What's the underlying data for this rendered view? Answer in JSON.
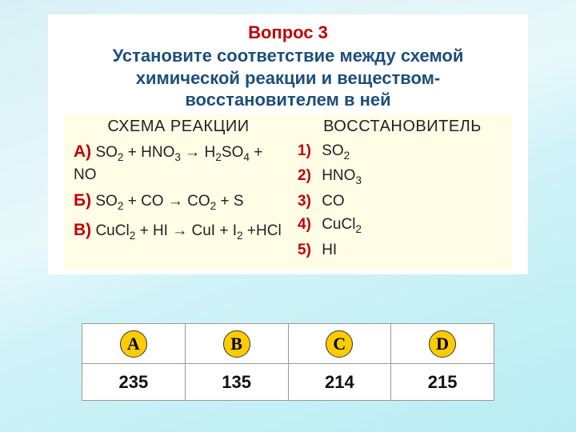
{
  "question": {
    "number_label": "Вопрос 3",
    "prompt": "Установите соответствие между схемой химической реакции и веществом-восстановителем в ней",
    "title_color": "#c00000",
    "prompt_color": "#1f4e79"
  },
  "columns": {
    "left_header": "СХЕМА РЕАКЦИИ",
    "right_header": "ВОССТАНОВИТЕЛЬ"
  },
  "reactions": [
    {
      "label": "А)",
      "text_html": "SO<sub>2</sub> + HNO<sub>3</sub> → H<sub>2</sub>SO<sub>4</sub> + NO"
    },
    {
      "label": "Б)",
      "text_html": "SO<sub>2</sub> + CO → CO<sub>2</sub> + S"
    },
    {
      "label": "В)",
      "text_html": "CuCl<sub>2</sub> + HI → CuI + I<sub>2</sub> +HCl"
    }
  ],
  "reducers": [
    {
      "num": "1)",
      "text_html": "SO<sub>2</sub>"
    },
    {
      "num": "2)",
      "text_html": "HNO<sub>3</sub>"
    },
    {
      "num": "3)",
      "text_html": "CO"
    },
    {
      "num": "4)",
      "text_html": "CuCl<sub>2</sub>"
    },
    {
      "num": "5)",
      "text_html": "HI"
    }
  ],
  "answers": {
    "letters": [
      "A",
      "B",
      "C",
      "D"
    ],
    "values": [
      "235",
      "135",
      "214",
      "215"
    ],
    "circle_fill": "#ffcc00"
  },
  "styling": {
    "card_bg": "#ffffff",
    "cream_bg": "#fffde6",
    "accent_red": "#c00000",
    "body_gradient": [
      "#d8f0f5",
      "#b8edf2"
    ],
    "font_family": "Arial",
    "serif_family": "Times New Roman",
    "qnum_fontsize": 22,
    "prompt_fontsize": 22,
    "header_fontsize": 20,
    "row_fontsize": 19,
    "answer_fontsize": 22
  }
}
